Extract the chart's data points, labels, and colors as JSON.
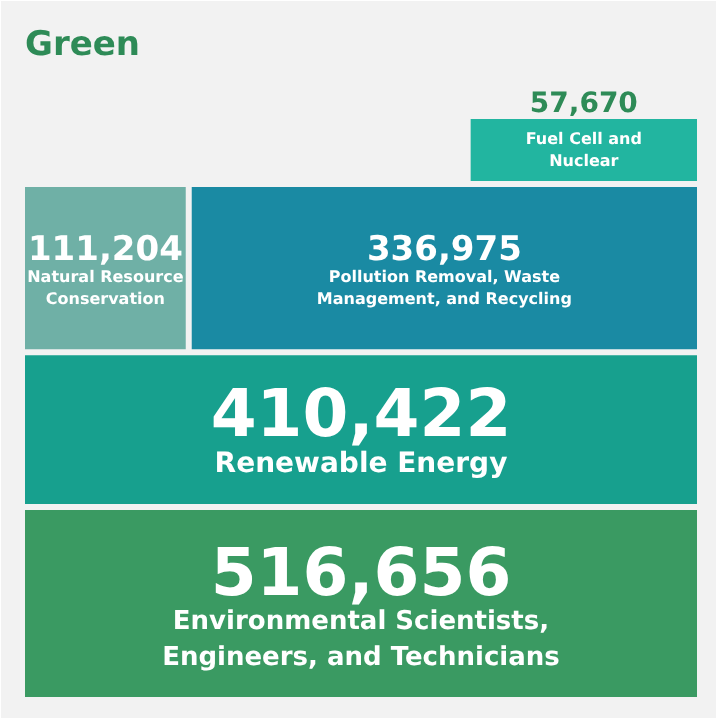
{
  "chart_data": {
    "type": "other",
    "title": "Green",
    "categories": [
      "Fuel Cell and Nuclear",
      "Natural Resource Conservation",
      "Pollution Removal, Waste Management, and Recycling",
      "Renewable Energy",
      "Environmental Scientists, Engineers, and Technicians"
    ],
    "values": [
      57670,
      111204,
      336975,
      410422,
      516656
    ],
    "colors": [
      "#22b5a0",
      "#6fb0a6",
      "#1a8aa3",
      "#17a08e",
      "#3a9a62"
    ],
    "data_labels": true,
    "value_labels": [
      "57,670",
      "111,204",
      "336,975",
      "410,422",
      "516,656"
    ]
  }
}
